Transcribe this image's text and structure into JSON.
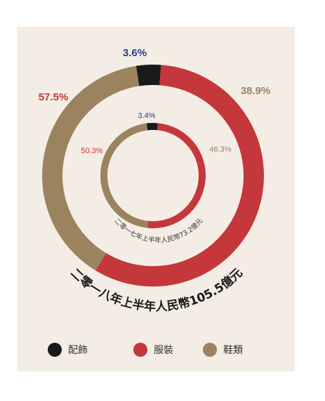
{
  "chart_data": [
    {
      "type": "donut",
      "ring": "outer",
      "categories": [
        "配飾",
        "服裝",
        "鞋類"
      ],
      "values": [
        3.6,
        57.5,
        38.9
      ],
      "value_labels": [
        "3.6%",
        "57.5%",
        "38.9%"
      ],
      "title": "二零一八年上半年人民幣105.5億元"
    },
    {
      "type": "donut",
      "ring": "inner",
      "categories": [
        "配飾",
        "服裝",
        "鞋類"
      ],
      "values": [
        3.4,
        50.3,
        46.3
      ],
      "value_labels": [
        "3.4%",
        "50.3%",
        "46.3%"
      ],
      "title": "二零一七年上半年人民幣73.2億元"
    }
  ],
  "legend": [
    {
      "label": "配飾",
      "color": "#1a1a1a"
    },
    {
      "label": "服裝",
      "color": "#c4373a"
    },
    {
      "label": "鞋類",
      "color": "#9b835f"
    }
  ],
  "colors": {
    "accessories": "#1a1a1a",
    "apparel": "#c4373a",
    "footwear": "#9b835f",
    "label_small": "#2c3e7a",
    "background": "#f4ede5"
  }
}
